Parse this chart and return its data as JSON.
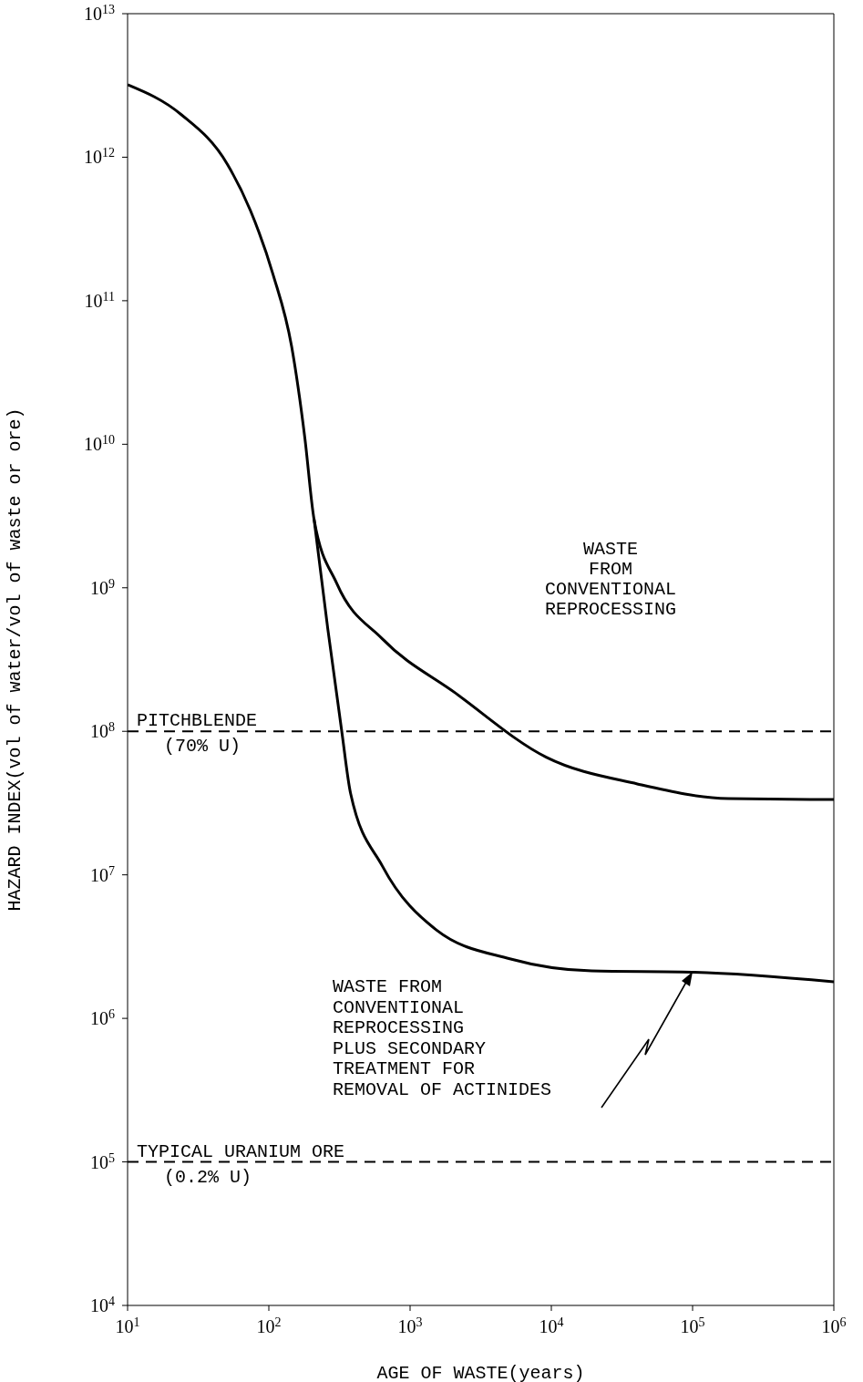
{
  "chart_data": {
    "type": "line",
    "xlabel": "AGE OF WASTE(years)",
    "ylabel": "HAZARD INDEX(vol of water/vol of waste or ore)",
    "log": "xy",
    "marker": "none",
    "line_style": "solid",
    "xlim": [
      10,
      1000000
    ],
    "ylim": [
      10000,
      10000000000000
    ],
    "xticks": [
      {
        "value": 10,
        "label": "10$^{1}$"
      },
      {
        "value": 100,
        "label": "10$^{2}$"
      },
      {
        "value": 1000,
        "label": "10$^{3}$"
      },
      {
        "value": 10000,
        "label": "10$^{4}$"
      },
      {
        "value": 100000,
        "label": "10$^{5}$"
      },
      {
        "value": 1000000,
        "label": "10$^{6}$"
      }
    ],
    "yticks": [
      {
        "value": 10000,
        "label": "10$^{4}$"
      },
      {
        "value": 100000,
        "label": "10$^{5}$"
      },
      {
        "value": 1000000,
        "label": "10$^{6}$"
      },
      {
        "value": 10000000,
        "label": "10$^{7}$"
      },
      {
        "value": 100000000,
        "label": "10$^{8}$"
      },
      {
        "value": 1000000000,
        "label": "10$^{9}$"
      },
      {
        "value": 10000000000,
        "label": "10$^{10}$"
      },
      {
        "value": 100000000000,
        "label": "10$^{11}$"
      },
      {
        "value": 1000000000000,
        "label": "10$^{12}$"
      },
      {
        "value": 10000000000000,
        "label": "10$^{13}$"
      }
    ],
    "series": [
      {
        "color": "#000000",
        "x": [
          10,
          24,
          51,
          74,
          107,
          145,
          180,
          209,
          303,
          637,
          2090,
          9200,
          40600,
          179000,
          1000000
        ],
        "values": [
          3200000000000,
          1980000000000,
          890000000000,
          426000000000,
          153000000000,
          48000000000,
          11000000000,
          3000000000,
          1070000000,
          440000000,
          185000000,
          66000000,
          43000000,
          34000000,
          33500000
        ]
      },
      {
        "color": "#000000",
        "x": [
          209,
          262,
          327,
          379,
          637,
          1550,
          5080,
          19300,
          99000,
          1000000
        ],
        "values": [
          3000000000,
          510000000,
          103000000,
          37000000,
          11500000,
          4100000,
          2600000,
          2140000,
          2100000,
          1800000
        ]
      }
    ],
    "ref_lines": [
      {
        "axis": "y",
        "value": 100000000,
        "label": "PITCHBLENDE\n(70% U)",
        "line_style": "dashed",
        "color": "#000000"
      },
      {
        "axis": "y",
        "value": 100000,
        "label": "TYPICAL URANIUM ORE\n(0.2% U)",
        "line_style": "dashed",
        "color": "#000000"
      }
    ],
    "annotations": [
      "WASTE\nFROM\nCONVENTIONAL\nREPROCESSING",
      "WASTE FROM\nCONVENTIONAL\nREPROCESSING\nPLUS SECONDARY\nTREATMENT FOR\nREMOVAL OF ACTINIDES"
    ]
  }
}
